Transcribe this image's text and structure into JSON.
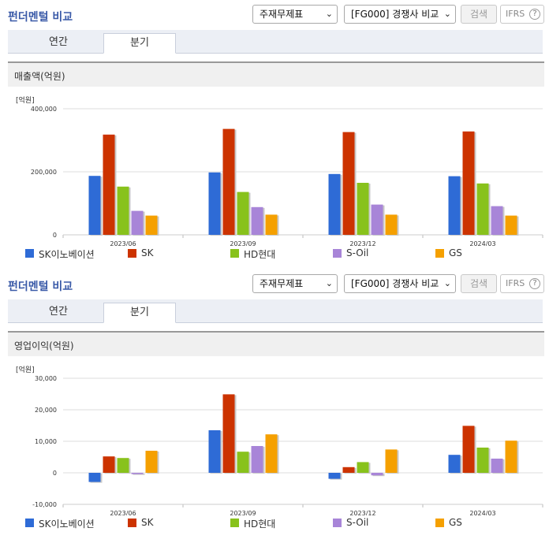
{
  "sections": [
    {
      "title": "펀더멘털 비교",
      "select1": "주재무제표",
      "select2": "[FG000] 경쟁사 비교",
      "search_label": "검색",
      "ifrs_label": "IFRS",
      "tabs": [
        "연간",
        "분기"
      ],
      "active_tab": 1,
      "metric_label": "매출액(억원)",
      "unit_label": "[억원]"
    },
    {
      "title": "펀더멘털 비교",
      "select1": "주재무제표",
      "select2": "[FG000] 경쟁사 비교",
      "search_label": "검색",
      "ifrs_label": "IFRS",
      "tabs": [
        "연간",
        "분기"
      ],
      "active_tab": 1,
      "metric_label": "영업이익(억원)",
      "unit_label": "[억원]"
    }
  ],
  "colors": [
    "#2e6bd6",
    "#cc3300",
    "#88c21c",
    "#a885d8",
    "#f5a000"
  ],
  "chart_data": [
    {
      "type": "bar",
      "title": "매출액(억원)",
      "ylabel": "[억원]",
      "ylim": [
        0,
        400000
      ],
      "yticks": [
        0,
        200000,
        400000
      ],
      "ytick_labels": [
        "0",
        "200,000",
        "400,000"
      ],
      "categories": [
        "2023/06",
        "2023/09",
        "2023/12",
        "2024/03"
      ],
      "series": [
        {
          "name": "SK이노베이션",
          "values": [
            187000,
            198000,
            193000,
            186000
          ]
        },
        {
          "name": "SK",
          "values": [
            318000,
            336000,
            326000,
            328000
          ]
        },
        {
          "name": "HD현대",
          "values": [
            153000,
            136000,
            165000,
            163000
          ]
        },
        {
          "name": "S-Oil",
          "values": [
            76000,
            88000,
            96000,
            91000
          ]
        },
        {
          "name": "GS",
          "values": [
            61000,
            64000,
            64000,
            61000
          ]
        }
      ],
      "legend": "bottom",
      "grid": true
    },
    {
      "type": "bar",
      "title": "영업이익(억원)",
      "ylabel": "[억원]",
      "ylim": [
        -10000,
        30000
      ],
      "yticks": [
        -10000,
        0,
        10000,
        20000,
        30000
      ],
      "ytick_labels": [
        "-10,000",
        "0",
        "10,000",
        "20,000",
        "30,000"
      ],
      "categories": [
        "2023/06",
        "2023/09",
        "2023/12",
        "2024/03"
      ],
      "series": [
        {
          "name": "SK이노베이션",
          "values": [
            -2900,
            13500,
            -1900,
            5700
          ]
        },
        {
          "name": "SK",
          "values": [
            5200,
            24900,
            1800,
            14900
          ]
        },
        {
          "name": "HD현대",
          "values": [
            4700,
            6700,
            3400,
            8000
          ]
        },
        {
          "name": "S-Oil",
          "values": [
            -400,
            8500,
            -800,
            4500
          ]
        },
        {
          "name": "GS",
          "values": [
            7000,
            12200,
            7400,
            10200
          ]
        }
      ],
      "legend": "bottom",
      "grid": true
    }
  ]
}
